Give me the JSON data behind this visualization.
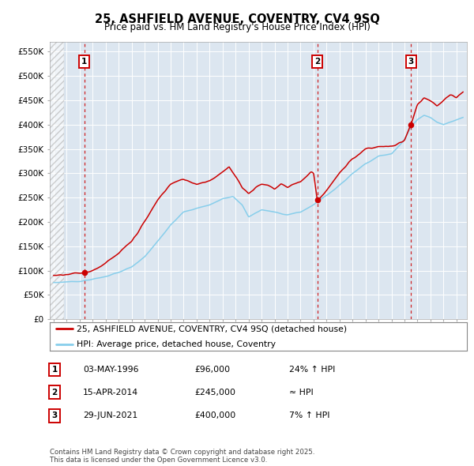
{
  "title": "25, ASHFIELD AVENUE, COVENTRY, CV4 9SQ",
  "subtitle": "Price paid vs. HM Land Registry's House Price Index (HPI)",
  "ylim": [
    0,
    570000
  ],
  "yticks": [
    0,
    50000,
    100000,
    150000,
    200000,
    250000,
    300000,
    350000,
    400000,
    450000,
    500000,
    550000
  ],
  "ytick_labels": [
    "£0",
    "£50K",
    "£100K",
    "£150K",
    "£200K",
    "£250K",
    "£300K",
    "£350K",
    "£400K",
    "£450K",
    "£500K",
    "£550K"
  ],
  "xlim_start": 1993.7,
  "xlim_end": 2025.8,
  "background_color": "#ffffff",
  "plot_bg_color": "#dce6f0",
  "grid_color": "#ffffff",
  "sale_dates": [
    1996.35,
    2014.29,
    2021.49
  ],
  "sale_prices": [
    96000,
    245000,
    400000
  ],
  "sale_labels": [
    "1",
    "2",
    "3"
  ],
  "sale_info": [
    {
      "num": "1",
      "date": "03-MAY-1996",
      "price": "£96,000",
      "rel": "24% ↑ HPI"
    },
    {
      "num": "2",
      "date": "15-APR-2014",
      "price": "£245,000",
      "rel": "≈ HPI"
    },
    {
      "num": "3",
      "date": "29-JUN-2021",
      "price": "£400,000",
      "rel": "7% ↑ HPI"
    }
  ],
  "legend_entries": [
    "25, ASHFIELD AVENUE, COVENTRY, CV4 9SQ (detached house)",
    "HPI: Average price, detached house, Coventry"
  ],
  "red_color": "#cc0000",
  "blue_color": "#87CEEB",
  "footer": "Contains HM Land Registry data © Crown copyright and database right 2025.\nThis data is licensed under the Open Government Licence v3.0."
}
